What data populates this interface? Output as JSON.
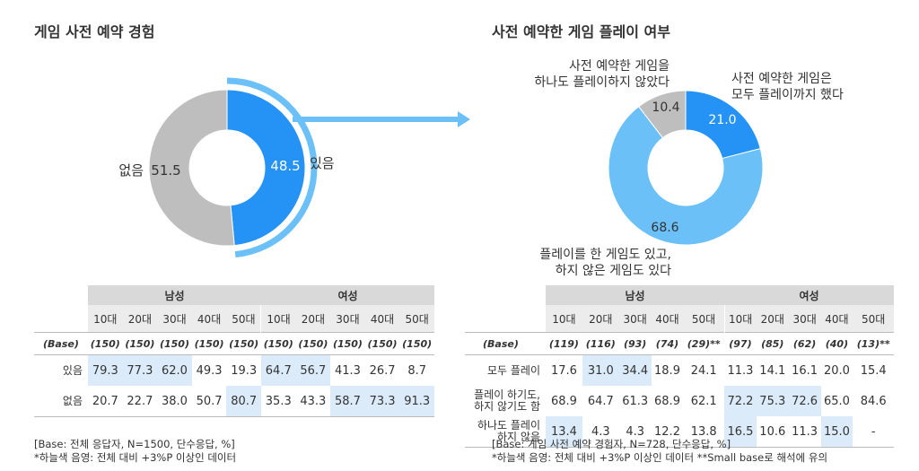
{
  "left": {
    "title": "게임 사전 예약 경험",
    "chart_data": {
      "type": "pie",
      "title": "게임 사전 예약 경험",
      "categories": [
        "있음",
        "없음"
      ],
      "values": [
        48.5,
        51.5
      ],
      "colors": [
        "#2592f5",
        "#bebebe"
      ]
    },
    "labels": {
      "yes": "있음",
      "no": "없음",
      "yes_value": "48.5",
      "no_value": "51.5"
    },
    "table": {
      "groups": [
        "남성",
        "여성"
      ],
      "ages": [
        "10대",
        "20대",
        "30대",
        "40대",
        "50대",
        "10대",
        "20대",
        "30대",
        "40대",
        "50대"
      ],
      "base_label": "(Base)",
      "base": [
        "(150)",
        "(150)",
        "(150)",
        "(150)",
        "(150)",
        "(150)",
        "(150)",
        "(150)",
        "(150)",
        "(150)"
      ],
      "rows": [
        {
          "label": "있음",
          "values": [
            "79.3",
            "77.3",
            "62.0",
            "49.3",
            "19.3",
            "64.7",
            "56.7",
            "41.3",
            "26.7",
            "8.7"
          ],
          "highlight": [
            true,
            true,
            true,
            false,
            false,
            true,
            true,
            false,
            false,
            false
          ]
        },
        {
          "label": "없음",
          "values": [
            "20.7",
            "22.7",
            "38.0",
            "50.7",
            "80.7",
            "35.3",
            "43.3",
            "58.7",
            "73.3",
            "91.3"
          ],
          "highlight": [
            false,
            false,
            false,
            false,
            true,
            false,
            false,
            true,
            true,
            true
          ]
        }
      ]
    },
    "notes": [
      "[Base: 전체 응답자, N=1500, 단수응답, %]",
      "*하늘색 음영: 전체 대비 +3%P 이상인 데이터"
    ]
  },
  "right": {
    "title": "사전 예약한 게임 플레이 여부",
    "chart_data": {
      "type": "pie",
      "title": "사전 예약한 게임 플레이 여부",
      "categories": [
        "사전 예약한 게임은 모두 플레이까지 했다",
        "플레이를 한 게임도 있고, 하지 않은 게임도 있다",
        "사전 예약한 게임을 하나도 플레이하지 않았다"
      ],
      "values": [
        21.0,
        68.6,
        10.4
      ],
      "colors": [
        "#2592f5",
        "#6cc0f8",
        "#bebebe"
      ]
    },
    "labels": {
      "all_line1": "사전 예약한 게임은",
      "all_line2": "모두 플레이까지 했다",
      "some_line1": "플레이를 한 게임도 있고,",
      "some_line2": "하지 않은 게임도 있다",
      "none_line1": "사전 예약한 게임을",
      "none_line2": "하나도 플레이하지 않았다",
      "v_all": "21.0",
      "v_some": "68.6",
      "v_none": "10.4"
    },
    "table": {
      "groups": [
        "남성",
        "여성"
      ],
      "ages": [
        "10대",
        "20대",
        "30대",
        "40대",
        "50대",
        "10대",
        "20대",
        "30대",
        "40대",
        "50대"
      ],
      "base_label": "(Base)",
      "base": [
        "(119)",
        "(116)",
        "(93)",
        "(74)",
        "(29)**",
        "(97)",
        "(85)",
        "(62)",
        "(40)",
        "(13)**"
      ],
      "rows": [
        {
          "label": "모두 플레이",
          "label2": "",
          "values": [
            "17.6",
            "31.0",
            "34.4",
            "18.9",
            "24.1",
            "11.3",
            "14.1",
            "16.1",
            "20.0",
            "15.4"
          ],
          "highlight": [
            false,
            true,
            true,
            false,
            false,
            false,
            false,
            false,
            false,
            false
          ]
        },
        {
          "label": "플레이 하기도,",
          "label2": "하지 않기도 함",
          "values": [
            "68.9",
            "64.7",
            "61.3",
            "68.9",
            "62.1",
            "72.2",
            "75.3",
            "72.6",
            "65.0",
            "84.6"
          ],
          "highlight": [
            false,
            false,
            false,
            false,
            false,
            true,
            true,
            true,
            false,
            false
          ]
        },
        {
          "label": "하나도 플레이",
          "label2": "하지 않음",
          "values": [
            "13.4",
            "4.3",
            "4.3",
            "12.2",
            "13.8",
            "16.5",
            "10.6",
            "11.3",
            "15.0",
            "-"
          ],
          "highlight": [
            true,
            false,
            false,
            false,
            false,
            true,
            false,
            false,
            true,
            false
          ]
        }
      ]
    },
    "notes": [
      "[Base: 게임 사전 예약 경험자, N=728, 단수응답, %]",
      "*하늘색 음영: 전체 대비 +3%P 이상인 데이터 **Small base로 해석에 유의"
    ]
  }
}
